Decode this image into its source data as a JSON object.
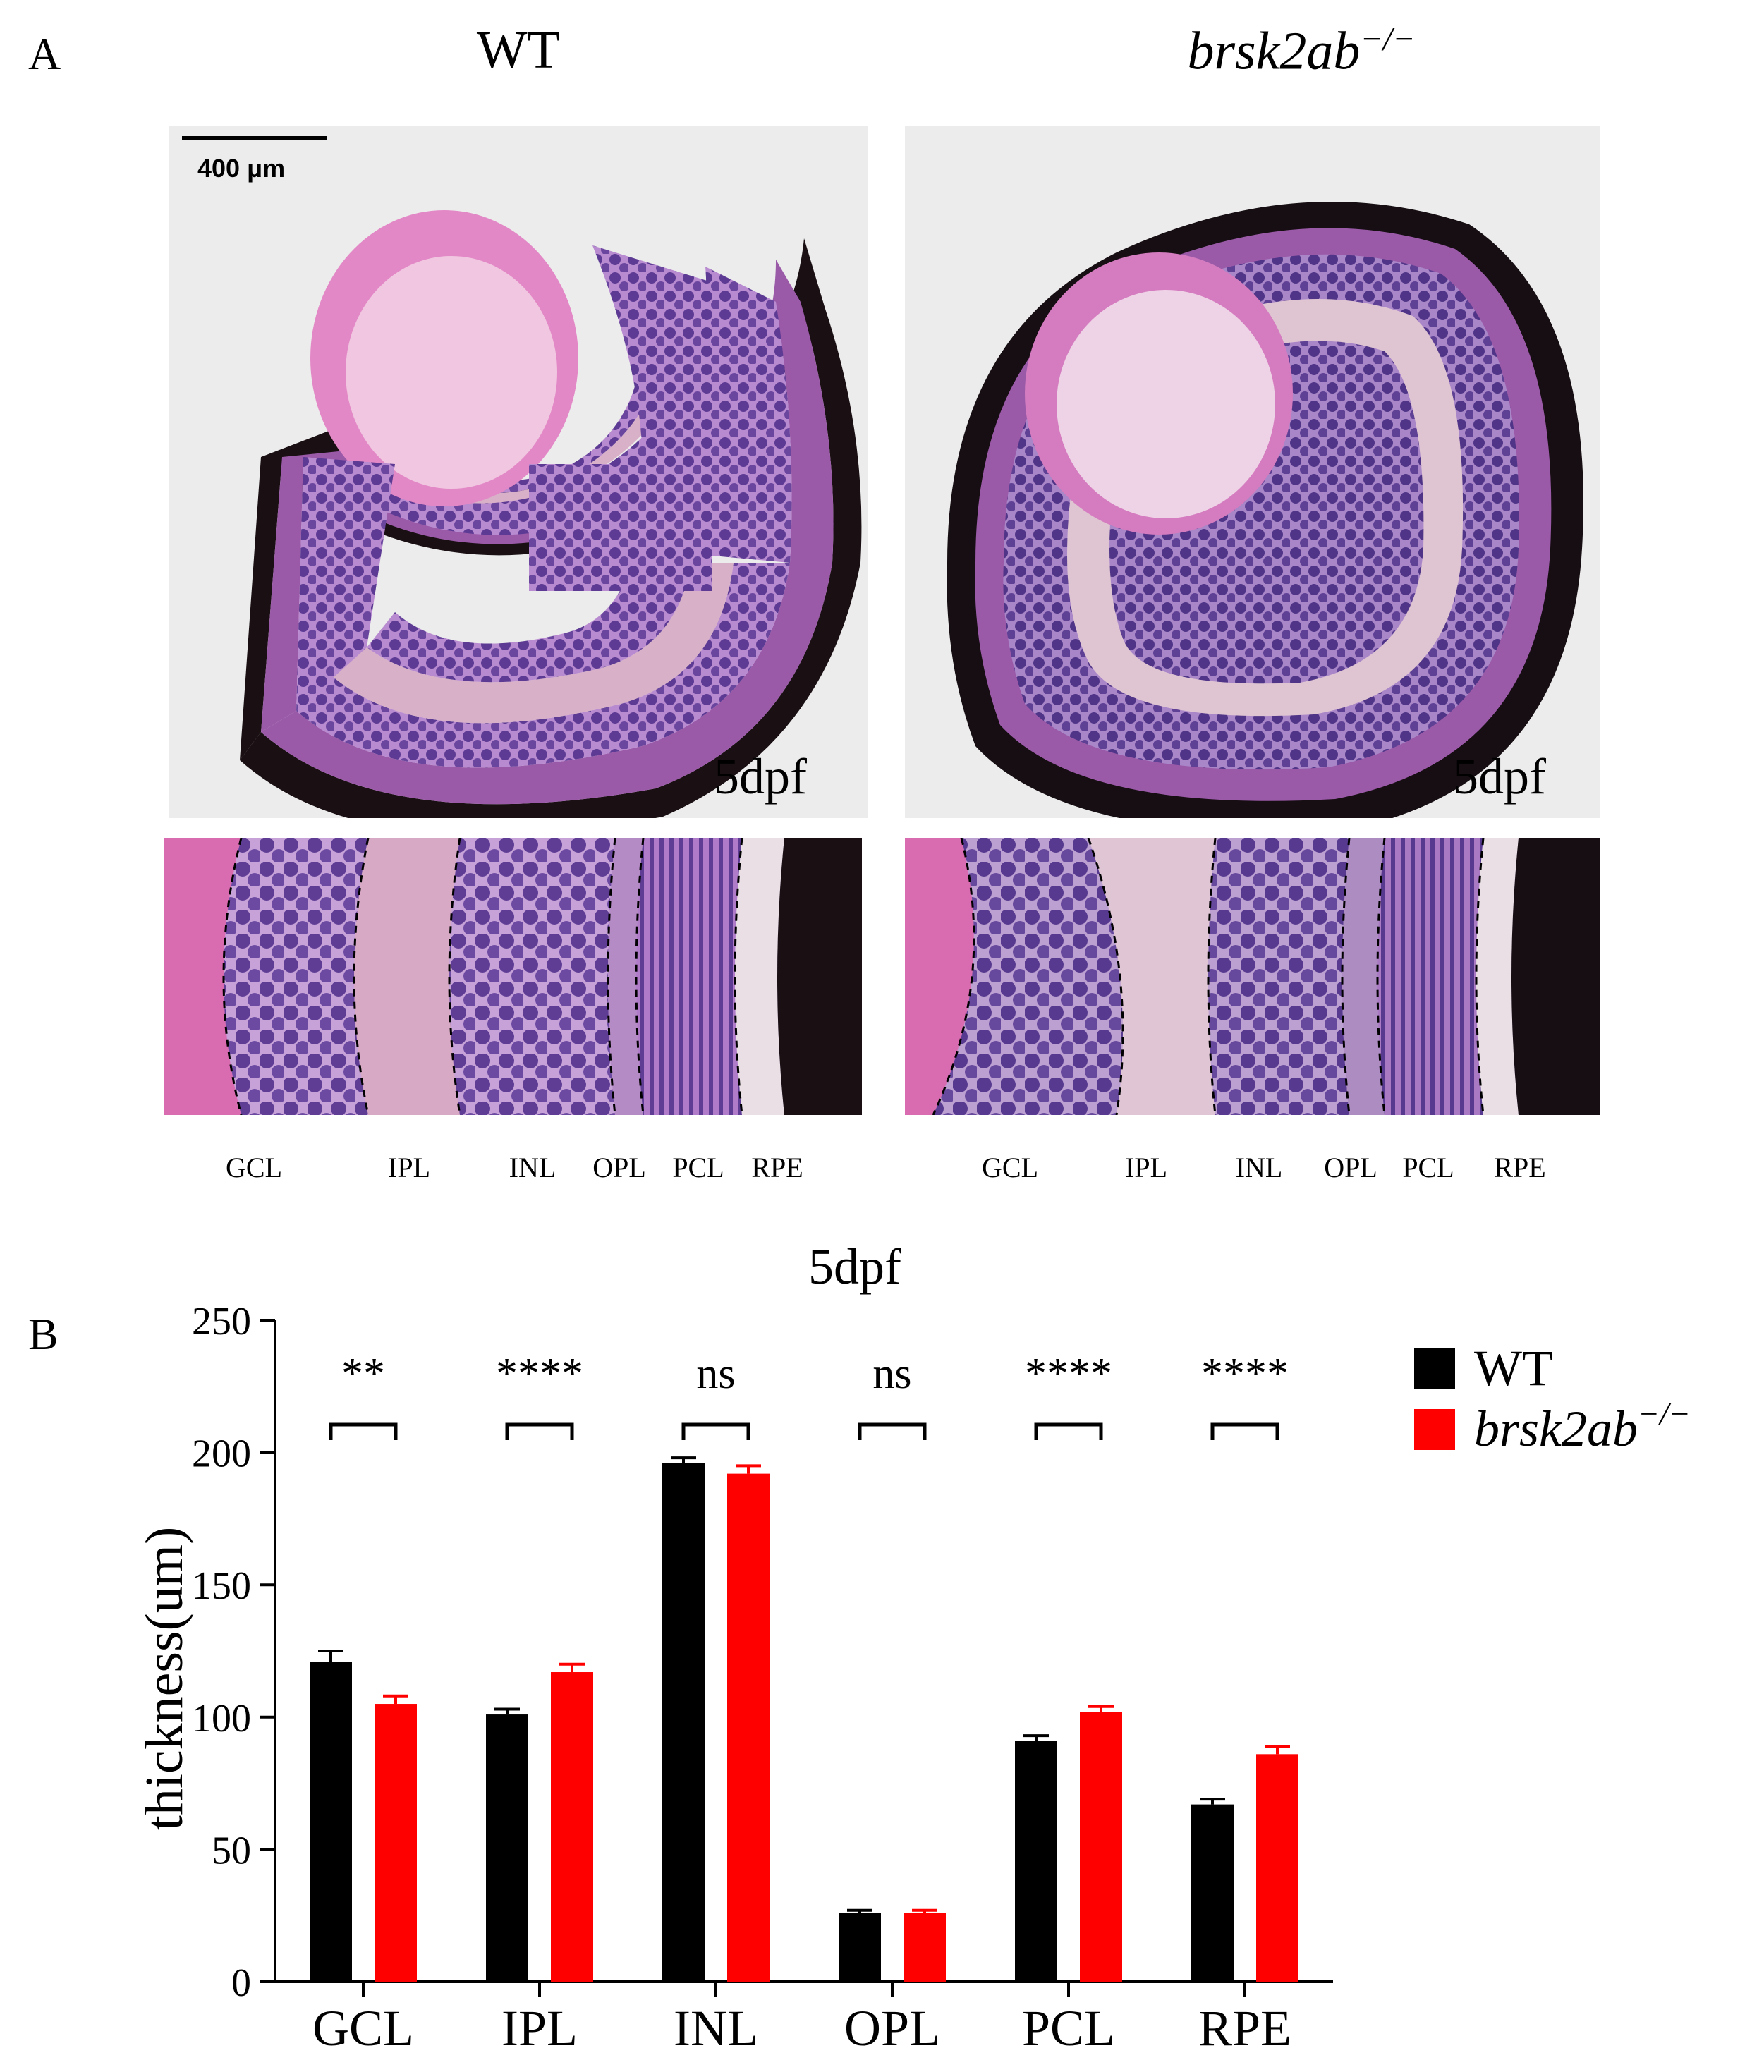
{
  "panel_a": {
    "letter": "A",
    "wt_title": "WT",
    "mutant_title": "brsk2ab",
    "mutant_sup": "−/−",
    "scale_bar": "400 μm",
    "stage_wt": "5dpf",
    "stage_mut": "5dpf",
    "layers_wt": [
      "GCL",
      "IPL",
      "INL",
      "OPL",
      "PCL",
      "RPE"
    ],
    "layers_mut": [
      "GCL",
      "IPL",
      "INL",
      "OPL",
      "PCL",
      "RPE"
    ]
  },
  "panel_b": {
    "letter": "B"
  },
  "chart_data": {
    "type": "bar",
    "title": "5dpf",
    "ylabel": "thickness(um)",
    "xlabel": "",
    "ylim": [
      0,
      250
    ],
    "yticks": [
      0,
      50,
      100,
      150,
      200,
      250
    ],
    "categories": [
      "GCL",
      "IPL",
      "INL",
      "OPL",
      "PCL",
      "RPE"
    ],
    "series": [
      {
        "name": "WT",
        "color": "#000000",
        "values": [
          121,
          101,
          196,
          26,
          91,
          67
        ],
        "errors": [
          4,
          2,
          2,
          1,
          2,
          2
        ]
      },
      {
        "name": "brsk2ab",
        "name_sup": "−/−",
        "color": "#ff0000",
        "values": [
          105,
          117,
          192,
          26,
          102,
          86
        ],
        "errors": [
          3,
          3,
          3,
          1,
          2,
          3
        ]
      }
    ],
    "significance": [
      "**",
      "****",
      "ns",
      "ns",
      "****",
      "****"
    ],
    "legend": "top-right",
    "grid": false
  }
}
